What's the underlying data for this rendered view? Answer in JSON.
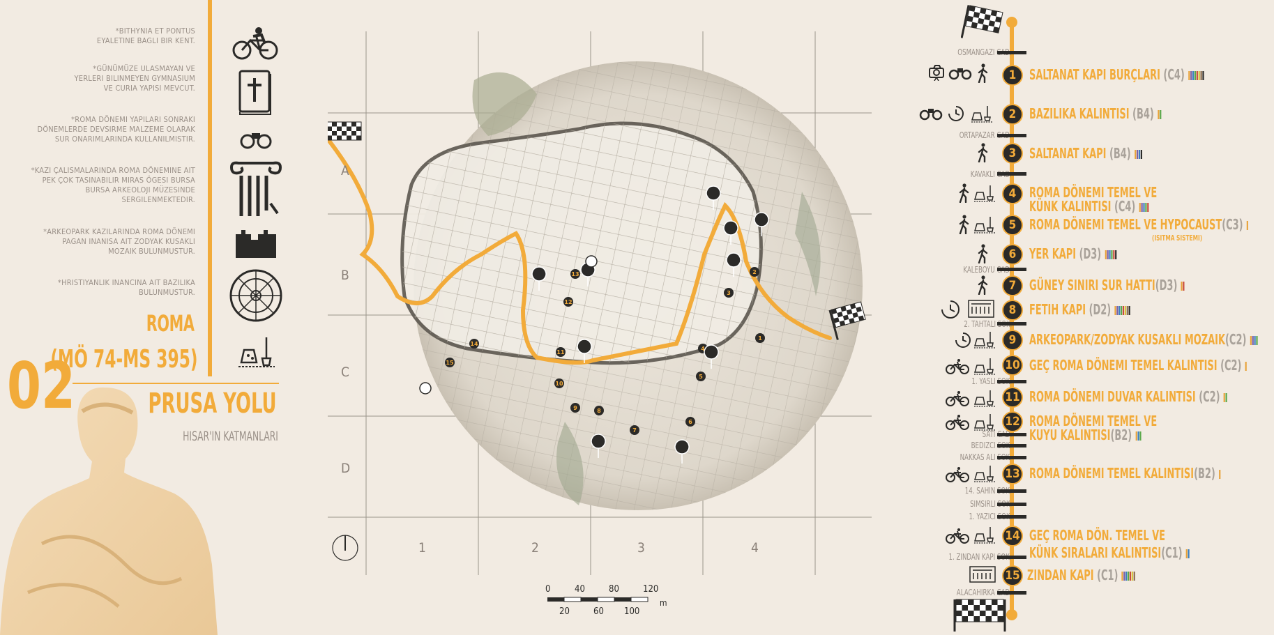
{
  "notes": [
    "*BITHYNIA ET PONTUS\nEYALETINE BAGLI BIR KENT.",
    "*GÜNÜMÜZE ULASMAYAN VE\nYERLERI BILINMEYEN GYMNASIUM\nVE CURIA YAPISI MEVCUT.",
    "*ROMA DÖNEMI YAPILARI SONRAKI\nDÖNEMLERDE DEVSIRME MALZEME OLARAK\nSUR ONARIMLARINDA KULLANILMISTIR.",
    "*KAZI ÇALISMALARINDA ROMA DÖNEMINE AIT\nPEK ÇOK TASINABILIR MIRAS ÖGESI BURSA\nBURSA ARKEOLOJI MÜZESINDE\nSERGILENMEKTEDIR.",
    "*ARKEOPARK KAZILARINDA ROMA DÖNEMI\nPAGAN INANISA AIT ZODYAK KUSAKLI\nMOZAIK BULUNMUSTUR.",
    "*HRISTIYANLIK INANCINA AIT BAZILIKA\nBULUNMUSTUR."
  ],
  "era": {
    "name": "ROMA",
    "years": "(MÖ 74-MS 395)"
  },
  "route": {
    "number": "02",
    "title": "PRUSA YOLU",
    "subtitle": "HISAR'IN KATMANLARI"
  },
  "map": {
    "rows": [
      "A",
      "B",
      "C",
      "D"
    ],
    "cols": [
      "1",
      "2",
      "3",
      "4"
    ],
    "scale_top": [
      "0",
      "40",
      "80",
      "120"
    ],
    "scale_bottom": [
      "20",
      "60",
      "100"
    ],
    "scale_unit": "m"
  },
  "streets": [
    "OSMANGAZI CAD.",
    "ORTAPAZAR CAD.",
    "KAVAKLI CAD.",
    "KALEBOYU CAD.",
    "2. TAHTALI SOK.",
    "1. YASLI SOK.",
    "SATI CAD.",
    "BEDIZCI SOK.",
    "NAKKAS ALI SOK.",
    "14. SAHIN SOK.",
    "SIMSIRLI SOK.",
    "1. YAZICI SOK.",
    "1. ZINDAN KAPI SOK.",
    "ALACAHIRKA CAD."
  ],
  "stops": [
    {
      "num": "1",
      "name": "SALTANAT KAPI BURÇLARI",
      "cell": "(C4)"
    },
    {
      "num": "2",
      "name": "BAZILIKA KALINTISI",
      "cell": "(B4)"
    },
    {
      "num": "3",
      "name": "SALTANAT KAPI",
      "cell": "(B4)"
    },
    {
      "num": "4",
      "name": "ROMA DÖNEMI TEMEL VE",
      "name2": "KÜNK KALINTISI",
      "cell": "(C4)"
    },
    {
      "num": "5",
      "name": "ROMA DÖNEMI TEMEL VE HYPOCAUST",
      "cell": "(C3)",
      "note": "(ISITMA SISTEMI)"
    },
    {
      "num": "6",
      "name": "YER KAPI",
      "cell": "(D3)"
    },
    {
      "num": "7",
      "name": "GÜNEY SINIRI SUR HATTI",
      "cell": "(D3)"
    },
    {
      "num": "8",
      "name": "FETIH KAPI",
      "cell": "(D2)"
    },
    {
      "num": "9",
      "name": "ARKEOPARK/ZODYAK KUSAKLI MOZAIK",
      "cell": "(C2)"
    },
    {
      "num": "10",
      "name": "GEÇ ROMA DÖNEMI TEMEL KALINTISI",
      "cell": "(C2)"
    },
    {
      "num": "11",
      "name": "ROMA DÖNEMI DUVAR KALINTISI",
      "cell": "(C2)"
    },
    {
      "num": "12",
      "name": "ROMA DÖNEMI TEMEL VE",
      "name2": "KUYU KALINTISI",
      "cell": "(B2)"
    },
    {
      "num": "13",
      "name": "ROMA DÖNEMI TEMEL  KALINTISI",
      "cell": "(B2)"
    },
    {
      "num": "14",
      "name": "GEÇ ROMA DÖN. TEMEL VE",
      "name2": "KÜNK SIRALARI KALINTISI",
      "cell": "(C1)"
    },
    {
      "num": "15",
      "name": "ZINDAN KAPI",
      "cell": "(C1)"
    }
  ],
  "colors": {
    "accent": "#f2ab3a",
    "background": "#f2ebe2",
    "dark": "#2b2a28",
    "text": "#9a9088",
    "swatches": [
      "#e8a33a",
      "#7a5ea8",
      "#3a7fbf",
      "#5aa84a",
      "#c94a3a",
      "#d8c23a",
      "#2b2a28",
      "#8a6a4a"
    ]
  }
}
